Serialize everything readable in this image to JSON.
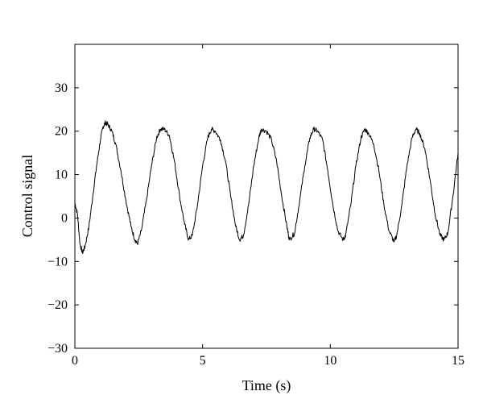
{
  "chart_data": {
    "type": "line",
    "title": "",
    "xlabel": "Time (s)",
    "ylabel": "Control signal",
    "xlim": [
      0,
      15
    ],
    "ylim": [
      -30,
      40
    ],
    "xticks": [
      0,
      5,
      10,
      15
    ],
    "yticks": [
      -30,
      -20,
      -10,
      0,
      10,
      20,
      30
    ],
    "xtick_labels": [
      "0",
      "5",
      "10",
      "15"
    ],
    "ytick_labels": [
      "−30",
      "−20",
      "−10",
      "0",
      "10",
      "20",
      "30"
    ],
    "grid": false,
    "series": [
      {
        "color": "#000000",
        "x": [
          0,
          0.1,
          0.2,
          0.3,
          0.4,
          0.55,
          0.7,
          0.85,
          1.0,
          1.1,
          1.2,
          1.3,
          1.45,
          1.6,
          1.8,
          2.0,
          2.2,
          2.35,
          2.45,
          2.6,
          2.8,
          3.0,
          3.2,
          3.35,
          3.5,
          3.7,
          3.9,
          4.1,
          4.3,
          4.45,
          4.6,
          4.8,
          5.0,
          5.2,
          5.35,
          5.5,
          5.7,
          5.9,
          6.1,
          6.3,
          6.45,
          6.6,
          6.8,
          7.0,
          7.2,
          7.3,
          7.5,
          7.7,
          7.9,
          8.1,
          8.3,
          8.4,
          8.6,
          8.8,
          9.0,
          9.2,
          9.35,
          9.5,
          9.7,
          9.9,
          10.1,
          10.3,
          10.5,
          10.6,
          10.8,
          11.0,
          11.2,
          11.35,
          11.5,
          11.7,
          11.9,
          12.1,
          12.3,
          12.5,
          12.6,
          12.8,
          13.0,
          13.2,
          13.35,
          13.5,
          13.7,
          13.9,
          14.1,
          14.3,
          14.45,
          14.6,
          14.8,
          15.0
        ],
        "y": [
          3.5,
          1,
          -6,
          -8,
          -6.5,
          -2,
          5,
          12,
          18,
          21,
          22,
          21.5,
          20,
          17,
          11,
          4,
          -2,
          -5,
          -6,
          -3,
          4,
          12,
          18.5,
          20.5,
          20.5,
          19,
          13,
          5,
          -1.5,
          -5,
          -4,
          3,
          12,
          18.5,
          20.5,
          20,
          18,
          13,
          5,
          -2,
          -5,
          -4,
          3,
          12,
          18.5,
          20.5,
          20,
          18,
          13,
          5,
          -2,
          -5,
          -3.5,
          4,
          12,
          18.5,
          20.5,
          20,
          18,
          11,
          3,
          -3,
          -5,
          -4,
          3,
          12,
          18.5,
          20.5,
          19.5,
          17,
          11,
          3,
          -3,
          -5.5,
          -4,
          3,
          12,
          18.5,
          20.5,
          19.5,
          16,
          9,
          1,
          -4,
          -5,
          -3.5,
          5,
          15
        ]
      }
    ]
  }
}
